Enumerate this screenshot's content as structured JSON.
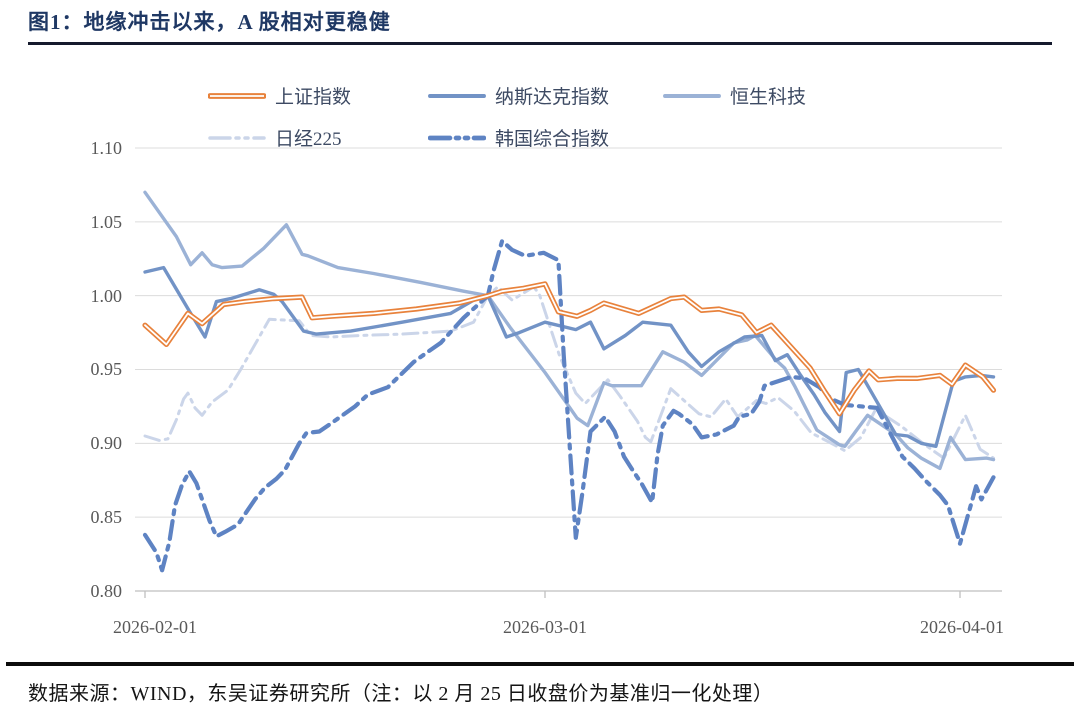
{
  "title": "图1：地缘冲击以来，A 股相对更稳健",
  "source_note": "数据来源：WIND，东吴证券研究所（注：以 2 月 25 日收盘价为基准归一化处理）",
  "chart_data": {
    "type": "line",
    "title": "图1：地缘冲击以来，A 股相对更稳健",
    "normalization_note": "以2月25日收盘价为基准归一化处理 (基准=1.00)",
    "legend_position": "top",
    "x_axis": {
      "unit": "date",
      "ticks": [
        "2026-02-01",
        "2026-03-01",
        "2026-04-01"
      ],
      "tick_days": [
        0,
        28,
        59
      ]
    },
    "y_axis": {
      "min": 0.8,
      "max": 1.1,
      "ticks": [
        "1.10",
        "1.05",
        "1.00",
        "0.95",
        "0.90",
        "0.85",
        "0.80"
      ],
      "grid": true
    },
    "series": [
      {
        "key": "sse",
        "name": "上证指数",
        "color": "#E8823C",
        "style": "double-solid",
        "x_days": [
          0,
          1.5,
          3,
          4,
          5.5,
          7,
          9,
          11,
          11.7,
          13,
          16,
          19,
          22,
          24,
          25,
          26.5,
          28,
          29,
          30.4,
          31.4,
          32.4,
          35,
          37.4,
          38.4,
          39.7,
          41,
          42.7,
          43.8,
          44.9,
          46.2,
          47.8,
          48.9,
          50,
          51.1,
          52.2,
          52.9,
          54.3,
          55.8,
          57.5,
          58.4,
          59.4,
          60.7,
          61.5
        ],
        "values": [
          0.98,
          0.967,
          0.988,
          0.981,
          0.994,
          0.996,
          0.998,
          0.999,
          0.985,
          0.986,
          0.988,
          0.991,
          0.995,
          1.0,
          1.003,
          1.005,
          1.008,
          0.989,
          0.986,
          0.99,
          0.995,
          0.988,
          0.998,
          0.999,
          0.99,
          0.991,
          0.987,
          0.975,
          0.98,
          0.967,
          0.951,
          0.935,
          0.92,
          0.936,
          0.949,
          0.943,
          0.944,
          0.944,
          0.946,
          0.94,
          0.953,
          0.945,
          0.936
        ]
      },
      {
        "key": "nasdaq",
        "name": "纳斯达克指数",
        "color": "#7293C6",
        "style": "solid",
        "x_days": [
          0,
          1.3,
          3.2,
          4.2,
          5,
          6,
          8,
          9,
          9.6,
          11.1,
          12,
          14.4,
          18,
          21.4,
          23,
          24,
          25.3,
          26.2,
          28,
          30.3,
          31.4,
          32.4,
          34,
          35.3,
          37.4,
          38.7,
          39.7,
          41,
          42.9,
          44.2,
          45.2,
          46.1,
          47.1,
          48.1,
          48.9,
          50,
          50.5,
          51.4,
          52.3,
          54.2,
          55.1,
          56.1,
          57.2,
          58.5,
          59.4,
          60.6,
          61.5
        ],
        "values": [
          1.016,
          1.019,
          0.988,
          0.972,
          0.996,
          0.998,
          1.004,
          1.001,
          0.996,
          0.976,
          0.974,
          0.976,
          0.982,
          0.988,
          0.997,
          1.0,
          0.972,
          0.975,
          0.982,
          0.977,
          0.982,
          0.964,
          0.973,
          0.982,
          0.98,
          0.962,
          0.952,
          0.962,
          0.972,
          0.973,
          0.956,
          0.96,
          0.946,
          0.933,
          0.921,
          0.908,
          0.948,
          0.95,
          0.936,
          0.906,
          0.905,
          0.9,
          0.898,
          0.942,
          0.945,
          0.946,
          0.945
        ]
      },
      {
        "key": "hstech",
        "name": "恒生科技",
        "color": "#9BB2D6",
        "style": "solid",
        "x_days": [
          0,
          2.2,
          3.2,
          4,
          4.7,
          5.4,
          6.8,
          8.3,
          9.9,
          11,
          11.4,
          13.5,
          16,
          19.3,
          22.3,
          24,
          25.6,
          28,
          29.4,
          30.4,
          31.2,
          32.4,
          33,
          35.2,
          36.8,
          38.4,
          39.7,
          42.1,
          43.1,
          43.7,
          45.3,
          45.9,
          46.7,
          47.3,
          48.3,
          50,
          50.4,
          51.2,
          52.1,
          54.2,
          55.1,
          56.1,
          57.5,
          58.3,
          59.4,
          61,
          61.5
        ],
        "values": [
          1.07,
          1.04,
          1.021,
          1.029,
          1.021,
          1.019,
          1.02,
          1.032,
          1.048,
          1.028,
          1.027,
          1.019,
          1.015,
          1.009,
          1.003,
          1.0,
          0.978,
          0.948,
          0.93,
          0.917,
          0.912,
          0.941,
          0.939,
          0.939,
          0.962,
          0.955,
          0.946,
          0.968,
          0.97,
          0.973,
          0.956,
          0.951,
          0.938,
          0.927,
          0.909,
          0.899,
          0.898,
          0.908,
          0.919,
          0.906,
          0.897,
          0.89,
          0.883,
          0.904,
          0.889,
          0.89,
          0.889
        ]
      },
      {
        "key": "nikkei225",
        "name": "日经225",
        "color": "#CBD5E9",
        "style": "dash-dot",
        "x_days": [
          0,
          1,
          1.6,
          2.2,
          2.7,
          3,
          3.5,
          4,
          4.7,
          5.8,
          6.7,
          8.7,
          10.8,
          11.6,
          13,
          15,
          18,
          21.4,
          23,
          24,
          24.7,
          25.7,
          27.2,
          27.6,
          29.1,
          30.3,
          31,
          32.7,
          33.6,
          34.9,
          35.5,
          35.9,
          37.4,
          39.5,
          40.4,
          41.5,
          42.4,
          43.8,
          44.5,
          45.4,
          46.6,
          47.9,
          49.2,
          50.4,
          51.6,
          52.7,
          54.7,
          56.1,
          57,
          57.8,
          59.4,
          60.5,
          61.5
        ],
        "values": [
          0.905,
          0.902,
          0.903,
          0.916,
          0.93,
          0.934,
          0.924,
          0.919,
          0.928,
          0.936,
          0.95,
          0.984,
          0.983,
          0.973,
          0.972,
          0.973,
          0.974,
          0.976,
          0.982,
          1.0,
          1.006,
          0.997,
          1.006,
          1.001,
          0.959,
          0.934,
          0.927,
          0.943,
          0.932,
          0.915,
          0.904,
          0.901,
          0.937,
          0.92,
          0.918,
          0.93,
          0.918,
          0.929,
          0.927,
          0.931,
          0.922,
          0.907,
          0.901,
          0.895,
          0.904,
          0.923,
          0.911,
          0.901,
          0.895,
          0.89,
          0.919,
          0.896,
          0.89
        ]
      },
      {
        "key": "kospi",
        "name": "韩国综合指数",
        "color": "#5E83C3",
        "style": "dash-dot-bold",
        "x_days": [
          0,
          0.8,
          1.2,
          1.7,
          2.1,
          2.6,
          3.1,
          3.6,
          4,
          4.5,
          5,
          5.6,
          6.5,
          7.2,
          7.7,
          8.4,
          9.2,
          9.8,
          10.8,
          11.3,
          12.2,
          13.1,
          14.7,
          15.6,
          17,
          18.8,
          19.8,
          20.7,
          22.3,
          24,
          24.4,
          25,
          25.7,
          26.6,
          27.9,
          29,
          29.4,
          30.3,
          30.8,
          31.4,
          32.5,
          33.2,
          33.9,
          34.6,
          35.2,
          36,
          36.4,
          36.8,
          37.6,
          38,
          39,
          39.7,
          40.8,
          42.1,
          42.5,
          43.4,
          44,
          44.4,
          46.4,
          47.4,
          48.5,
          49.4,
          50.4,
          52.8,
          53.9,
          54.7,
          55.6,
          56.4,
          57.5,
          58.1,
          59,
          60.2,
          60.6,
          61.5
        ],
        "values": [
          0.838,
          0.826,
          0.814,
          0.833,
          0.858,
          0.872,
          0.881,
          0.873,
          0.862,
          0.848,
          0.837,
          0.84,
          0.845,
          0.855,
          0.862,
          0.87,
          0.876,
          0.882,
          0.9,
          0.907,
          0.908,
          0.914,
          0.925,
          0.933,
          0.938,
          0.955,
          0.962,
          0.968,
          0.985,
          1.0,
          1.017,
          1.037,
          1.031,
          1.027,
          1.029,
          1.024,
          0.96,
          0.836,
          0.867,
          0.908,
          0.918,
          0.908,
          0.891,
          0.881,
          0.873,
          0.86,
          0.892,
          0.912,
          0.922,
          0.92,
          0.913,
          0.904,
          0.906,
          0.912,
          0.918,
          0.92,
          0.928,
          0.939,
          0.945,
          0.944,
          0.938,
          0.93,
          0.926,
          0.924,
          0.905,
          0.891,
          0.883,
          0.875,
          0.865,
          0.858,
          0.832,
          0.871,
          0.862,
          0.877
        ]
      }
    ]
  }
}
